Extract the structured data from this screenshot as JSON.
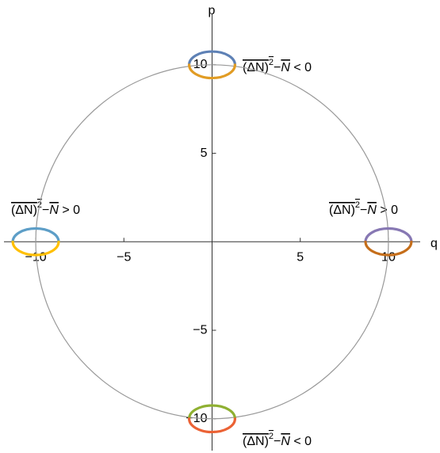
{
  "chart_data": {
    "type": "phase",
    "xlabel": "q",
    "ylabel": "p",
    "xlim": [
      -11.8,
      11.8
    ],
    "ylim": [
      -11.8,
      12.9
    ],
    "xticks": [
      {
        "value": -10,
        "label": "−10"
      },
      {
        "value": -5,
        "label": "−5"
      },
      5,
      10
    ],
    "yticks": [
      {
        "value": -10,
        "label": "−10"
      },
      {
        "value": -5,
        "label": "−5"
      },
      5,
      10
    ],
    "circle": {
      "center": [
        0,
        0
      ],
      "radius": 10,
      "color": "#999999"
    },
    "series": [
      {
        "center": [
          0,
          10
        ],
        "rx": 1.3,
        "ry": 0.75,
        "half": "upper",
        "color": "#5e81b5"
      },
      {
        "center": [
          0,
          10
        ],
        "rx": 1.3,
        "ry": 0.75,
        "half": "lower",
        "color": "#e19c24"
      },
      {
        "center": [
          0,
          -10
        ],
        "rx": 1.3,
        "ry": 0.75,
        "half": "upper",
        "color": "#8fb032"
      },
      {
        "center": [
          0,
          -10
        ],
        "rx": 1.3,
        "ry": 0.75,
        "half": "lower",
        "color": "#eb6235"
      },
      {
        "center": [
          10,
          0
        ],
        "rx": 1.3,
        "ry": 0.75,
        "half": "upper",
        "color": "#8778b3"
      },
      {
        "center": [
          10,
          0
        ],
        "rx": 1.3,
        "ry": 0.75,
        "half": "lower",
        "color": "#c56e1a"
      },
      {
        "center": [
          -10,
          0
        ],
        "rx": 1.3,
        "ry": 0.75,
        "half": "upper",
        "color": "#5d9ec7"
      },
      {
        "center": [
          -10,
          0
        ],
        "rx": 1.3,
        "ry": 0.75,
        "half": "lower",
        "color": "#ffbf00"
      }
    ],
    "annotations": [
      {
        "base": "(ΔN)",
        "exp": "2",
        "minus": "−",
        "mean": "N",
        "relation": " < 0"
      },
      {
        "base": "(ΔN)",
        "exp": "2",
        "minus": "−",
        "mean": "N",
        "relation": " < 0"
      },
      {
        "base": "(ΔN)",
        "exp": "2",
        "minus": "−",
        "mean": "N",
        "relation": " > 0"
      },
      {
        "base": "(ΔN)",
        "exp": "2",
        "minus": "−",
        "mean": "N",
        "relation": " > 0"
      }
    ]
  }
}
